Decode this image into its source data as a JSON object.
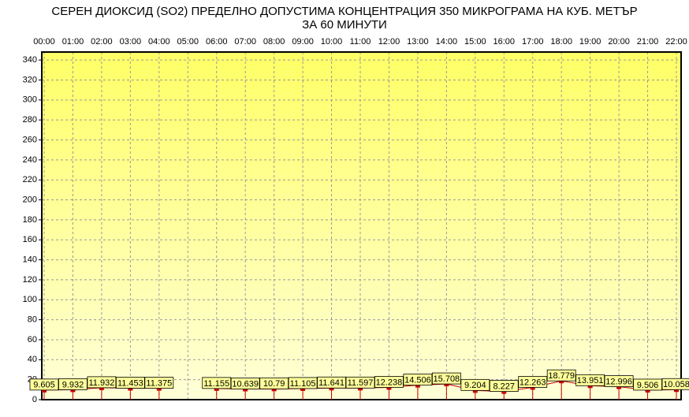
{
  "chart_data": {
    "type": "line",
    "title": "СЕРЕН ДИОКСИД  (SO2)  ПРЕДЕЛНО ДОПУСТИМА КОНЦЕНТРАЦИЯ 350 МИКРОГРАМА  НА КУБ. МЕТЪР",
    "subtitle": "ЗА 60 МИНУТИ",
    "categories": [
      "00:00",
      "01:00",
      "02:00",
      "03:00",
      "04:00",
      "05:00",
      "06:00",
      "07:00",
      "08:00",
      "09:00",
      "10:00",
      "11:00",
      "12:00",
      "13:00",
      "14:00",
      "15:00",
      "16:00",
      "17:00",
      "18:00",
      "19:00",
      "20:00",
      "21:00",
      "22:00"
    ],
    "values": [
      9.605,
      9.932,
      11.932,
      11.453,
      11.375,
      null,
      11.155,
      10.639,
      10.79,
      11.105,
      11.641,
      11.597,
      12.238,
      14.506,
      15.708,
      9.204,
      8.227,
      12.263,
      18.779,
      13.951,
      12.996,
      9.506,
      10.058
    ],
    "color": "#cc0000",
    "ylim": [
      0,
      348
    ],
    "yticks": [
      0,
      20,
      40,
      60,
      80,
      100,
      120,
      140,
      160,
      180,
      200,
      220,
      240,
      260,
      280,
      300,
      320,
      340
    ],
    "grid": true
  }
}
